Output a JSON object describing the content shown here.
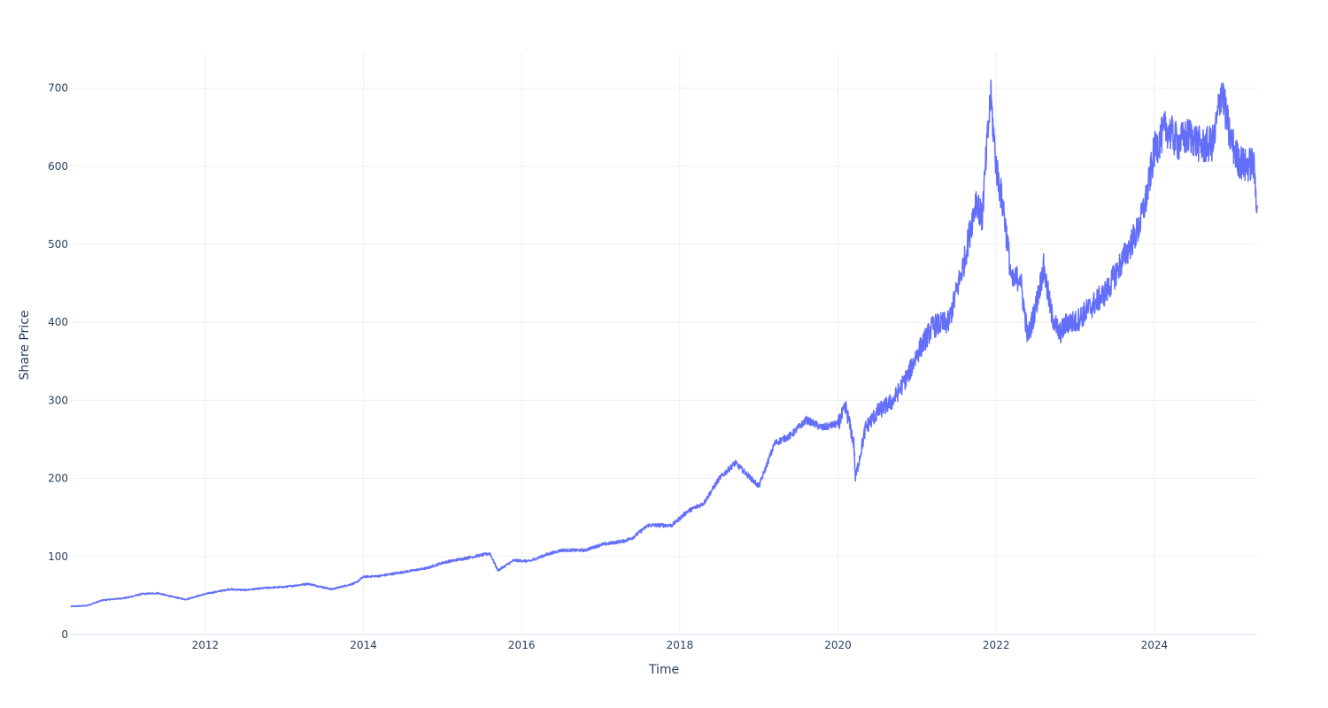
{
  "chart_data": {
    "type": "line",
    "title": "",
    "xlabel": "Time",
    "ylabel": "Share Price",
    "xlim": [
      2010.3,
      2025.3
    ],
    "ylim": [
      0,
      745
    ],
    "grid": true,
    "legend": "none",
    "x_ticks": [
      {
        "value": 2012,
        "label": "2012"
      },
      {
        "value": 2014,
        "label": "2014"
      },
      {
        "value": 2016,
        "label": "2016"
      },
      {
        "value": 2018,
        "label": "2018"
      },
      {
        "value": 2020,
        "label": "2020"
      },
      {
        "value": 2022,
        "label": "2022"
      },
      {
        "value": 2024,
        "label": "2024"
      }
    ],
    "y_ticks": [
      {
        "value": 0,
        "label": "0"
      },
      {
        "value": 100,
        "label": "100"
      },
      {
        "value": 200,
        "label": "200"
      },
      {
        "value": 300,
        "label": "300"
      },
      {
        "value": 400,
        "label": "400"
      },
      {
        "value": 500,
        "label": "500"
      },
      {
        "value": 600,
        "label": "600"
      },
      {
        "value": 700,
        "label": "700"
      }
    ],
    "series": [
      {
        "color": "#636efa",
        "x": [
          2010.3,
          2010.5,
          2010.7,
          2011.0,
          2011.2,
          2011.4,
          2011.6,
          2011.75,
          2012.0,
          2012.3,
          2012.5,
          2012.8,
          2013.0,
          2013.3,
          2013.6,
          2013.9,
          2014.0,
          2014.2,
          2014.5,
          2014.8,
          2015.0,
          2015.3,
          2015.6,
          2015.7,
          2015.9,
          2016.1,
          2016.3,
          2016.5,
          2016.8,
          2017.0,
          2017.3,
          2017.4,
          2017.6,
          2017.9,
          2018.1,
          2018.3,
          2018.5,
          2018.7,
          2018.9,
          2019.0,
          2019.2,
          2019.4,
          2019.6,
          2019.8,
          2020.0,
          2020.1,
          2020.2,
          2020.22,
          2020.35,
          2020.5,
          2020.7,
          2020.9,
          2021.0,
          2021.2,
          2021.4,
          2021.6,
          2021.75,
          2021.82,
          2021.88,
          2021.93,
          2022.0,
          2022.1,
          2022.2,
          2022.3,
          2022.4,
          2022.5,
          2022.6,
          2022.7,
          2022.8,
          2022.9,
          2023.0,
          2023.2,
          2023.4,
          2023.6,
          2023.8,
          2023.9,
          2024.0,
          2024.15,
          2024.3,
          2024.45,
          2024.6,
          2024.75,
          2024.85,
          2024.95,
          2025.05,
          2025.15,
          2025.25,
          2025.3
        ],
        "y": [
          36,
          37,
          44,
          47,
          52,
          53,
          48,
          45,
          52,
          58,
          57,
          60,
          61,
          65,
          58,
          66,
          74,
          75,
          80,
          85,
          92,
          98,
          104,
          82,
          95,
          94,
          102,
          108,
          108,
          115,
          120,
          124,
          140,
          140,
          158,
          168,
          200,
          220,
          200,
          190,
          245,
          255,
          275,
          265,
          270,
          290,
          245,
          200,
          265,
          285,
          300,
          335,
          360,
          395,
          400,
          480,
          560,
          530,
          620,
          690,
          600,
          540,
          450,
          460,
          380,
          420,
          470,
          410,
          385,
          400,
          400,
          420,
          440,
          480,
          520,
          560,
          620,
          650,
          630,
          640,
          625,
          630,
          700,
          640,
          610,
          600,
          605,
          550
        ]
      }
    ]
  }
}
